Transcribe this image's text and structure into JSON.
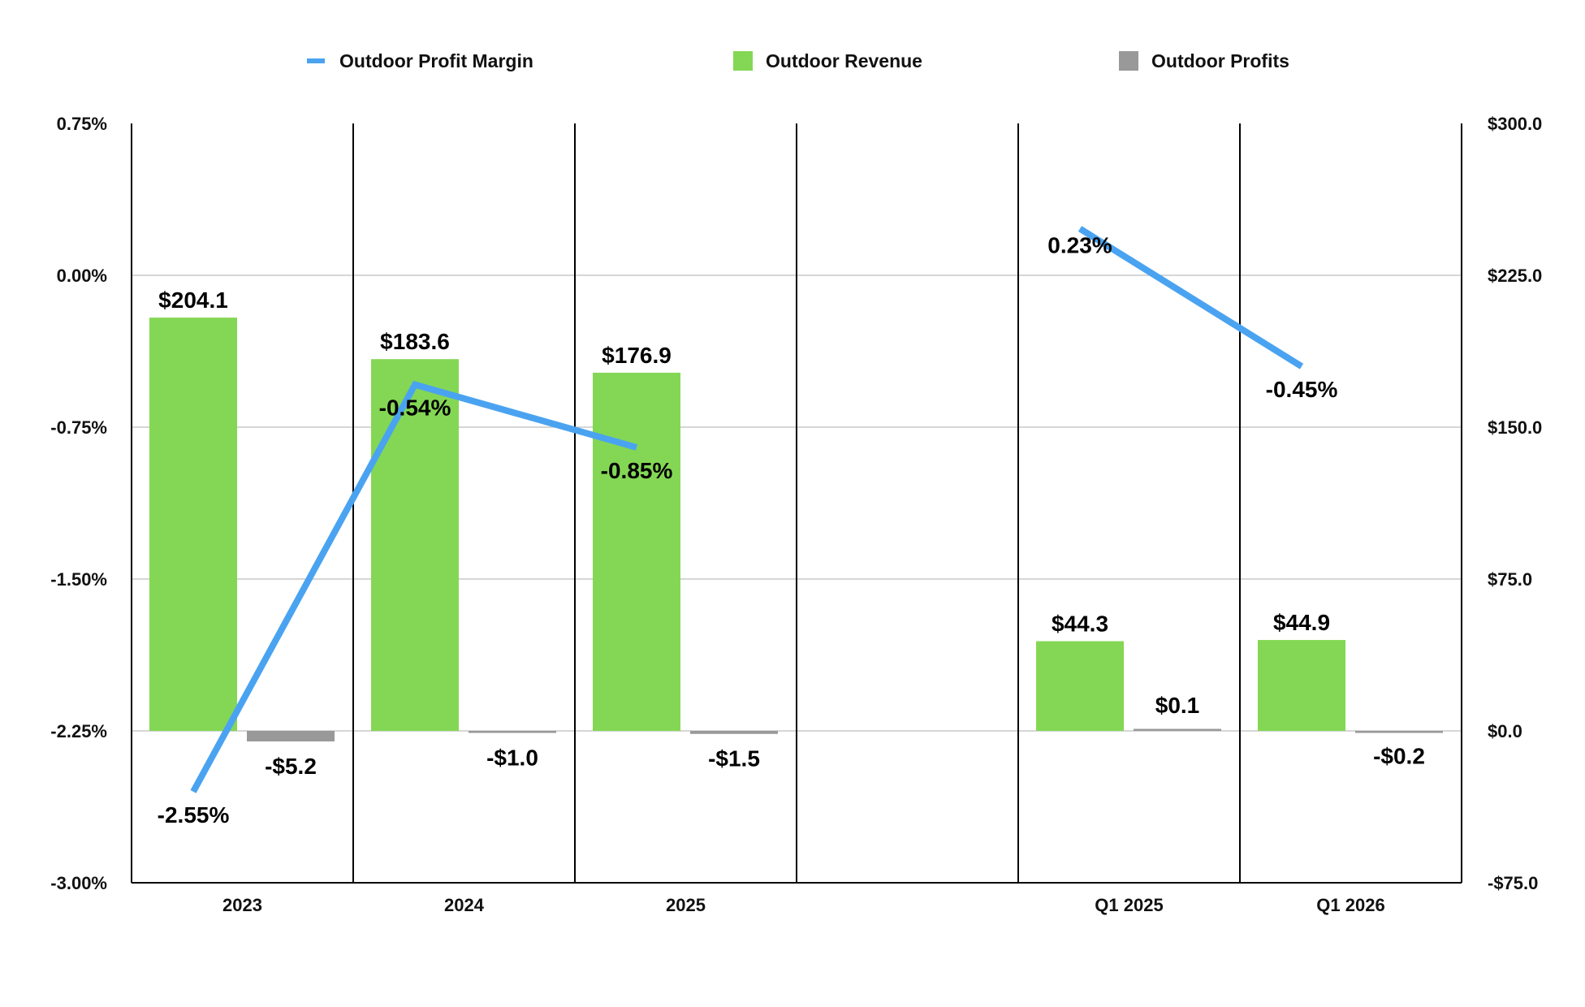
{
  "chart_data": {
    "type": "bar",
    "categories": [
      "2023",
      "2024",
      "2025",
      "",
      "Q1 2025",
      "Q1 2026"
    ],
    "series": [
      {
        "name": "Outdoor Revenue",
        "kind": "bar",
        "axis": "right",
        "color": "#84d754",
        "values": [
          204.1,
          183.6,
          176.9,
          null,
          44.3,
          44.9
        ],
        "labels": [
          "$204.1",
          "$183.6",
          "$176.9",
          null,
          "$44.3",
          "$44.9"
        ]
      },
      {
        "name": "Outdoor Profits",
        "kind": "bar",
        "axis": "right",
        "color": "#999999",
        "values": [
          -5.2,
          -1.0,
          -1.5,
          null,
          0.1,
          -0.2
        ],
        "labels": [
          "-$5.2",
          "-$1.0",
          "-$1.5",
          null,
          "$0.1",
          "-$0.2"
        ]
      },
      {
        "name": "Outdoor Profit Margin",
        "kind": "line",
        "axis": "left",
        "color": "#4aa3f0",
        "values": [
          -2.55,
          -0.54,
          -0.85,
          null,
          0.23,
          -0.45
        ],
        "labels": [
          "-2.55%",
          "-0.54%",
          "-0.85%",
          null,
          "0.23%",
          "-0.45%"
        ],
        "segments": [
          [
            0,
            2
          ],
          [
            4,
            5
          ]
        ]
      }
    ],
    "y_left": {
      "range": [
        -3.0,
        0.75
      ],
      "ticks": [
        -3.0,
        -2.25,
        -1.5,
        -0.75,
        0.0,
        0.75
      ],
      "tick_labels": [
        "-3.00%",
        "-2.25%",
        "-1.50%",
        "-0.75%",
        "0.00%",
        "0.75%"
      ]
    },
    "y_right": {
      "range": [
        -75,
        300
      ],
      "ticks": [
        -75,
        0,
        75,
        150,
        225,
        300
      ],
      "tick_labels": [
        "-$75.0",
        "$0.0",
        "$75.0",
        "$150.0",
        "$225.0",
        "$300.0"
      ]
    },
    "legend": {
      "position": "top-center",
      "entries": [
        "Outdoor Profit Margin",
        "Outdoor Revenue",
        "Outdoor Profits"
      ]
    },
    "grid": true
  }
}
